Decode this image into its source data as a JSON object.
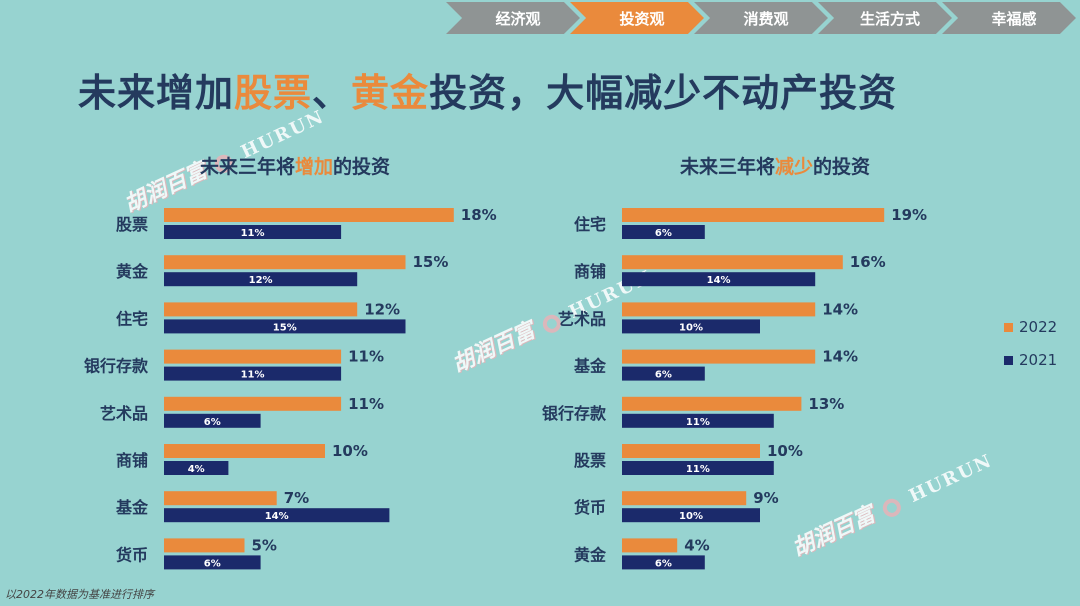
{
  "nav": {
    "items": [
      "经济观",
      "投资观",
      "消费观",
      "生活方式",
      "幸福感"
    ],
    "active_index": 1
  },
  "title": {
    "part1": "未来增加",
    "hl1": "股票",
    "part2": "、",
    "hl2": "黄金",
    "part3": "投资，大幅减少不动产投资"
  },
  "left": {
    "sub_pre": "未来三年将",
    "sub_hl": "增加",
    "sub_post": "的投资"
  },
  "right": {
    "sub_pre": "未来三年将",
    "sub_hl": "减少",
    "sub_post": "的投资"
  },
  "legend": {
    "label_2022": "2022",
    "label_2021": "2021"
  },
  "colors": {
    "c2022": "#ea8a3c",
    "c2021": "#1b2a6b",
    "accent": "#ea8a3c",
    "text": "#243a5e"
  },
  "watermark": {
    "cn": "胡润百富",
    "en": "HURUN"
  },
  "footnote": "以2022年数据为基准进行排序",
  "chart_data": [
    {
      "type": "bar",
      "orientation": "horizontal",
      "title": "未来三年将增加的投资",
      "categories": [
        "股票",
        "黄金",
        "住宅",
        "银行存款",
        "艺术品",
        "商铺",
        "基金",
        "货币"
      ],
      "series": [
        {
          "name": "2022",
          "values": [
            18,
            15,
            12,
            11,
            11,
            10,
            7,
            5
          ]
        },
        {
          "name": "2021",
          "values": [
            11,
            12,
            15,
            11,
            6,
            4,
            14,
            6
          ]
        }
      ],
      "unit": "%",
      "xlim": [
        0,
        20
      ]
    },
    {
      "type": "bar",
      "orientation": "horizontal",
      "title": "未来三年将减少的投资",
      "categories": [
        "住宅",
        "商铺",
        "艺术品",
        "基金",
        "银行存款",
        "股票",
        "货币",
        "黄金"
      ],
      "series": [
        {
          "name": "2022",
          "values": [
            19,
            16,
            14,
            14,
            13,
            10,
            9,
            4
          ]
        },
        {
          "name": "2021",
          "values": [
            6,
            14,
            10,
            6,
            11,
            11,
            10,
            6
          ]
        }
      ],
      "unit": "%",
      "xlim": [
        0,
        20
      ]
    }
  ]
}
